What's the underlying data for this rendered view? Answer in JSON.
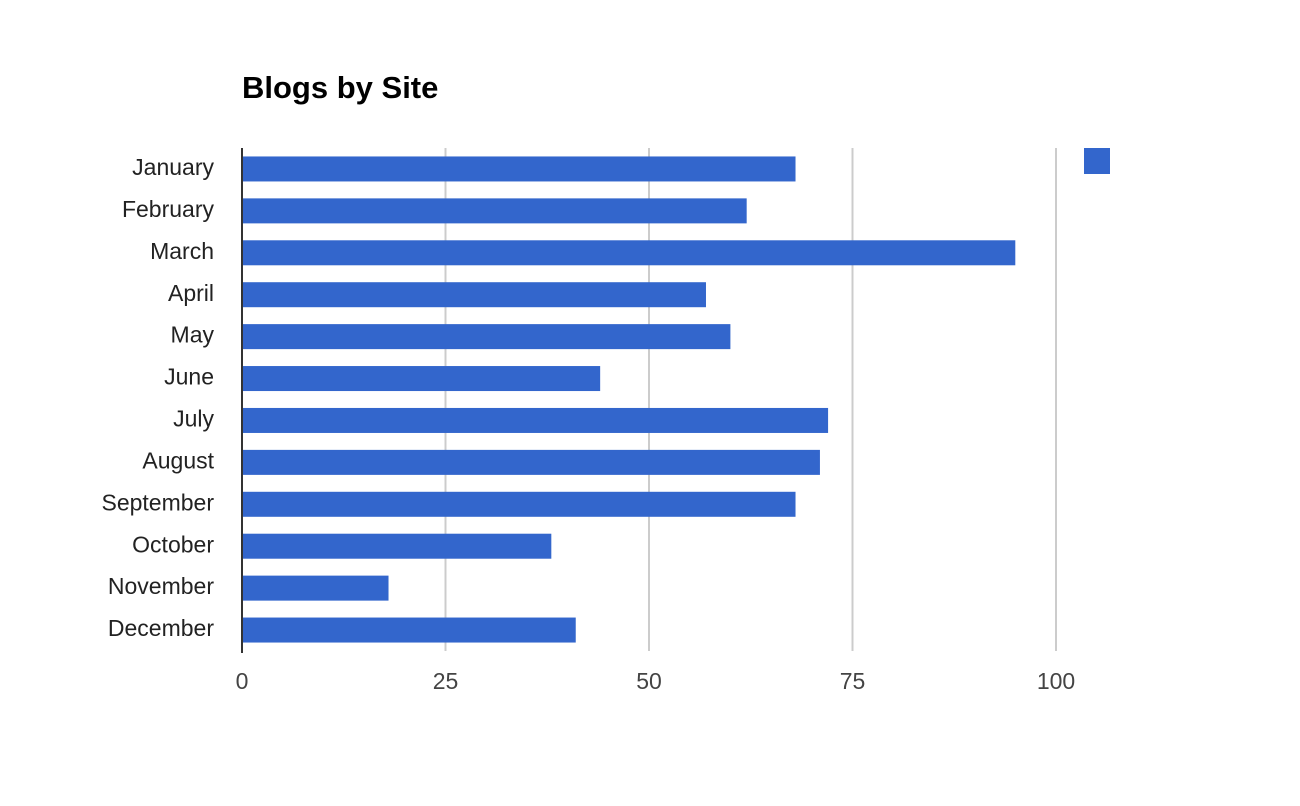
{
  "chart_data": {
    "type": "bar",
    "title": "Blogs by Site",
    "categories": [
      "January",
      "February",
      "March",
      "April",
      "May",
      "June",
      "July",
      "August",
      "September",
      "October",
      "November",
      "December"
    ],
    "values": [
      68,
      62,
      95,
      57,
      60,
      44,
      72,
      71,
      68,
      38,
      18,
      41
    ],
    "color": "#3366cc",
    "xlim": [
      0,
      100
    ],
    "xticks": [
      0,
      25,
      50,
      75,
      100
    ],
    "grid": true
  }
}
